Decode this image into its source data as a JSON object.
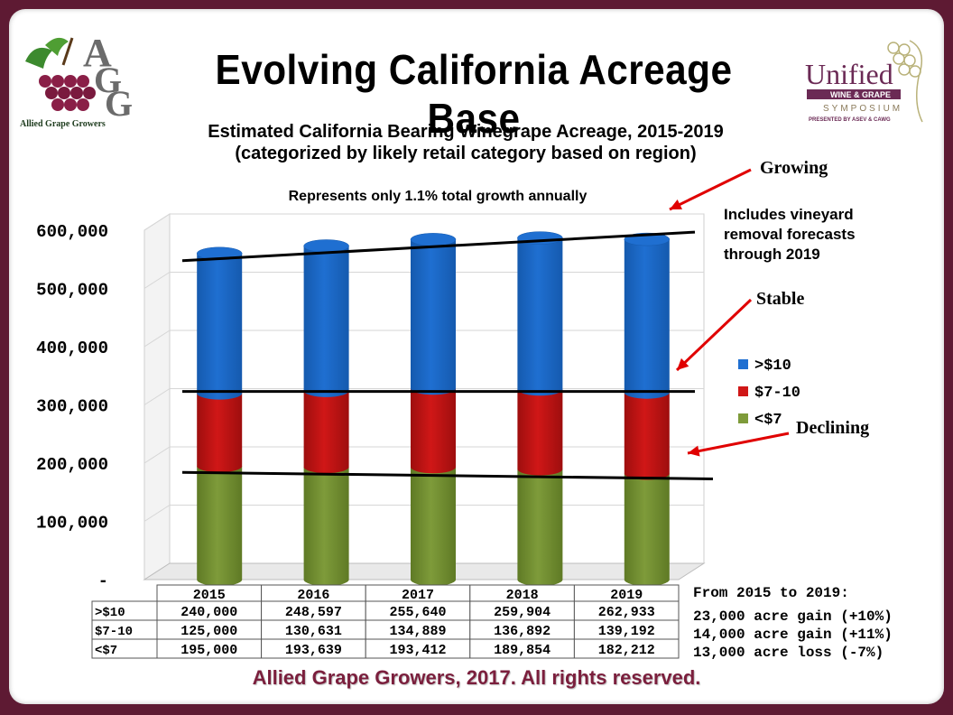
{
  "slide_title": "Evolving California Acreage Base",
  "footer": "Allied Grape Growers, 2017.  All rights reserved.",
  "logos": {
    "left": {
      "letters": [
        "A",
        "G",
        "G"
      ],
      "caption": "Allied Grape Growers"
    },
    "right": {
      "word": "Unified",
      "band": "WINE & GRAPE",
      "sub": "SYMPOSIUM",
      "small": "PRESENTED BY ASEV & CAWG"
    }
  },
  "annotations": {
    "growing": "Growing",
    "stable": "Stable",
    "declining": "Declining",
    "note_lines": [
      "Includes vineyard",
      "removal forecasts",
      "through 2019"
    ]
  },
  "summary": {
    "heading": "From 2015 to 2019:",
    "lines": [
      "23,000 acre gain (+10%)",
      "14,000 acre gain (+11%)",
      "13,000 acre loss (-7%)"
    ]
  },
  "colors": {
    "gt10": "#1f6fd1",
    "mid": "#d01717",
    "lt7": "#7e9b3a",
    "accent": "#7b1f3d"
  },
  "chart_data": {
    "type": "bar",
    "stacked": true,
    "title": "Estimated California Bearing Winegrape Acreage, 2015-2019",
    "subtitle": "(categorized by likely retail category based on region)",
    "annotation": "Represents only 1.1% total growth annually",
    "categories": [
      "2015",
      "2016",
      "2017",
      "2018",
      "2019"
    ],
    "series": [
      {
        "name": "<$7",
        "table_label": "<$7",
        "color": "#7e9b3a",
        "values": [
          195000,
          193639,
          193412,
          189854,
          182212
        ],
        "labels": [
          "195,000",
          "193,639",
          "193,412",
          "189,854",
          "182,212"
        ]
      },
      {
        "name": "$7-10",
        "table_label": "$7-10",
        "color": "#d01717",
        "values": [
          125000,
          130631,
          134889,
          136892,
          139192
        ],
        "labels": [
          "125,000",
          "130,631",
          "134,889",
          "136,892",
          "139,192"
        ]
      },
      {
        "name": ">$10",
        "table_label": ">$10",
        "color": "#1f6fd1",
        "values": [
          240000,
          248597,
          255640,
          259904,
          262933
        ],
        "labels": [
          "240,000",
          "248,597",
          "255,640",
          "259,904",
          "262,933"
        ]
      }
    ],
    "legend_order": [
      ">$10",
      "$7-10",
      "<$7"
    ],
    "ylim": [
      0,
      600000
    ],
    "yticks": [
      0,
      100000,
      200000,
      300000,
      400000,
      500000,
      600000
    ],
    "ytick_labels": [
      "-",
      "100,000",
      "200,000",
      "300,000",
      "400,000",
      "500,000",
      "600,000"
    ],
    "grid": true,
    "legend": "right"
  }
}
